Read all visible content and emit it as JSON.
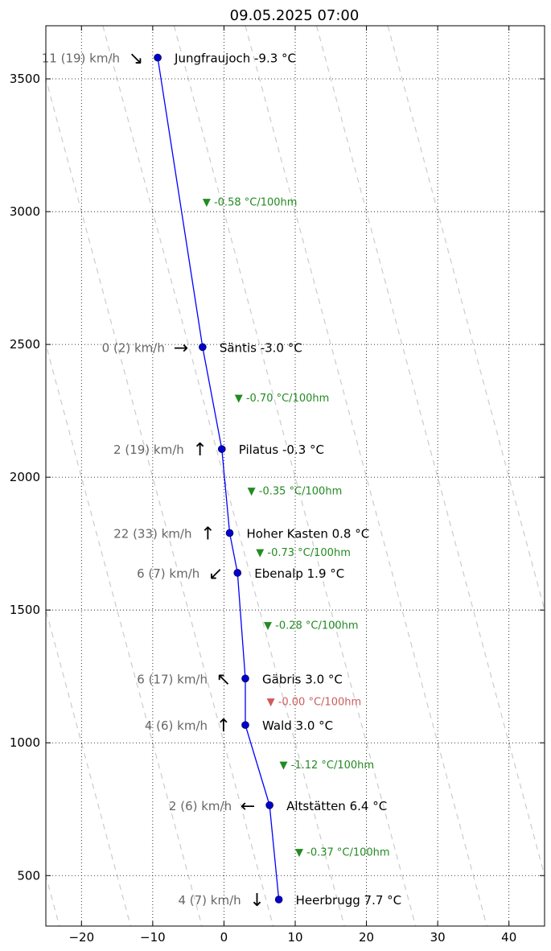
{
  "chart_data": {
    "type": "line",
    "title": "09.05.2025 07:00",
    "xlabel": "",
    "ylabel": "",
    "xlim": [
      -25,
      45
    ],
    "ylim": [
      310,
      3700
    ],
    "x_ticks": [
      -20,
      -10,
      0,
      10,
      20,
      30,
      40
    ],
    "x_tick_labels": [
      "−20",
      "−10",
      "0",
      "10",
      "20",
      "30",
      "40"
    ],
    "y_ticks": [
      500,
      1000,
      1500,
      2000,
      2500,
      3000,
      3500
    ],
    "y_tick_labels": [
      "500",
      "1000",
      "1500",
      "2000",
      "2500",
      "3000",
      "3500"
    ],
    "grid": true,
    "line_color": "#0000ff",
    "marker_color": "#0000cc",
    "reference_line_color": "#cccccc",
    "dry_adiabat_base_temps": [
      -50,
      -40,
      -30,
      -20,
      -10,
      0,
      10,
      20,
      30,
      40,
      50,
      60
    ],
    "series": [
      {
        "points": [
          {
            "station": "Jungfraujoch",
            "temp": -9.3,
            "alt": 3580,
            "label": "Jungfraujoch -9.3 °C",
            "wind": "11 (19) km/h",
            "arrow": "↘"
          },
          {
            "station": "Säntis",
            "temp": -3.0,
            "alt": 2490,
            "label": "Säntis -3.0 °C",
            "wind": "0 (2) km/h",
            "arrow": "→"
          },
          {
            "station": "Pilatus",
            "temp": -0.3,
            "alt": 2106,
            "label": "Pilatus -0.3 °C",
            "wind": "2 (19) km/h",
            "arrow": "↑"
          },
          {
            "station": "Hoher Kasten",
            "temp": 0.8,
            "alt": 1790,
            "label": "Hoher Kasten 0.8 °C",
            "wind": "22 (33) km/h",
            "arrow": "↑"
          },
          {
            "station": "Ebenalp",
            "temp": 1.9,
            "alt": 1640,
            "label": "Ebenalp 1.9 °C",
            "wind": "6 (7) km/h",
            "arrow": "↙"
          },
          {
            "station": "Gäbris",
            "temp": 3.0,
            "alt": 1242,
            "label": "Gäbris 3.0 °C",
            "wind": "6 (17) km/h",
            "arrow": "↖"
          },
          {
            "station": "Wald",
            "temp": 3.0,
            "alt": 1067,
            "label": "Wald 3.0 °C",
            "wind": "4 (6) km/h",
            "arrow": "↑"
          },
          {
            "station": "Altstätten",
            "temp": 6.4,
            "alt": 765,
            "label": "Altstätten 6.4 °C",
            "wind": "2 (6) km/h",
            "arrow": "←"
          },
          {
            "station": "Heerbrugg",
            "temp": 7.7,
            "alt": 410,
            "label": "Heerbrugg 7.7 °C",
            "wind": "4 (7) km/h",
            "arrow": "↓"
          }
        ]
      }
    ],
    "lapse_rates": [
      {
        "text": "▼ -0.58 °C/100hm",
        "temp": -3.0,
        "alt": 3035,
        "color": "#228b22"
      },
      {
        "text": "▼ -0.70 °C/100hm",
        "temp": 1.5,
        "alt": 2298,
        "color": "#228b22"
      },
      {
        "text": "▼ -0.35 °C/100hm",
        "temp": 3.3,
        "alt": 1948,
        "color": "#228b22"
      },
      {
        "text": "▼ -0.73 °C/100hm",
        "temp": 4.5,
        "alt": 1715,
        "color": "#228b22"
      },
      {
        "text": "▼ -0.28 °C/100hm",
        "temp": 5.6,
        "alt": 1441,
        "color": "#228b22"
      },
      {
        "text": "▼ -0.00 °C/100hm",
        "temp": 6.0,
        "alt": 1154,
        "color": "#cd5c5c"
      },
      {
        "text": "▼ -1.12 °C/100hm",
        "temp": 7.8,
        "alt": 916,
        "color": "#228b22"
      },
      {
        "text": "▼ -0.37 °C/100hm",
        "temp": 10.0,
        "alt": 587,
        "color": "#228b22"
      }
    ]
  }
}
